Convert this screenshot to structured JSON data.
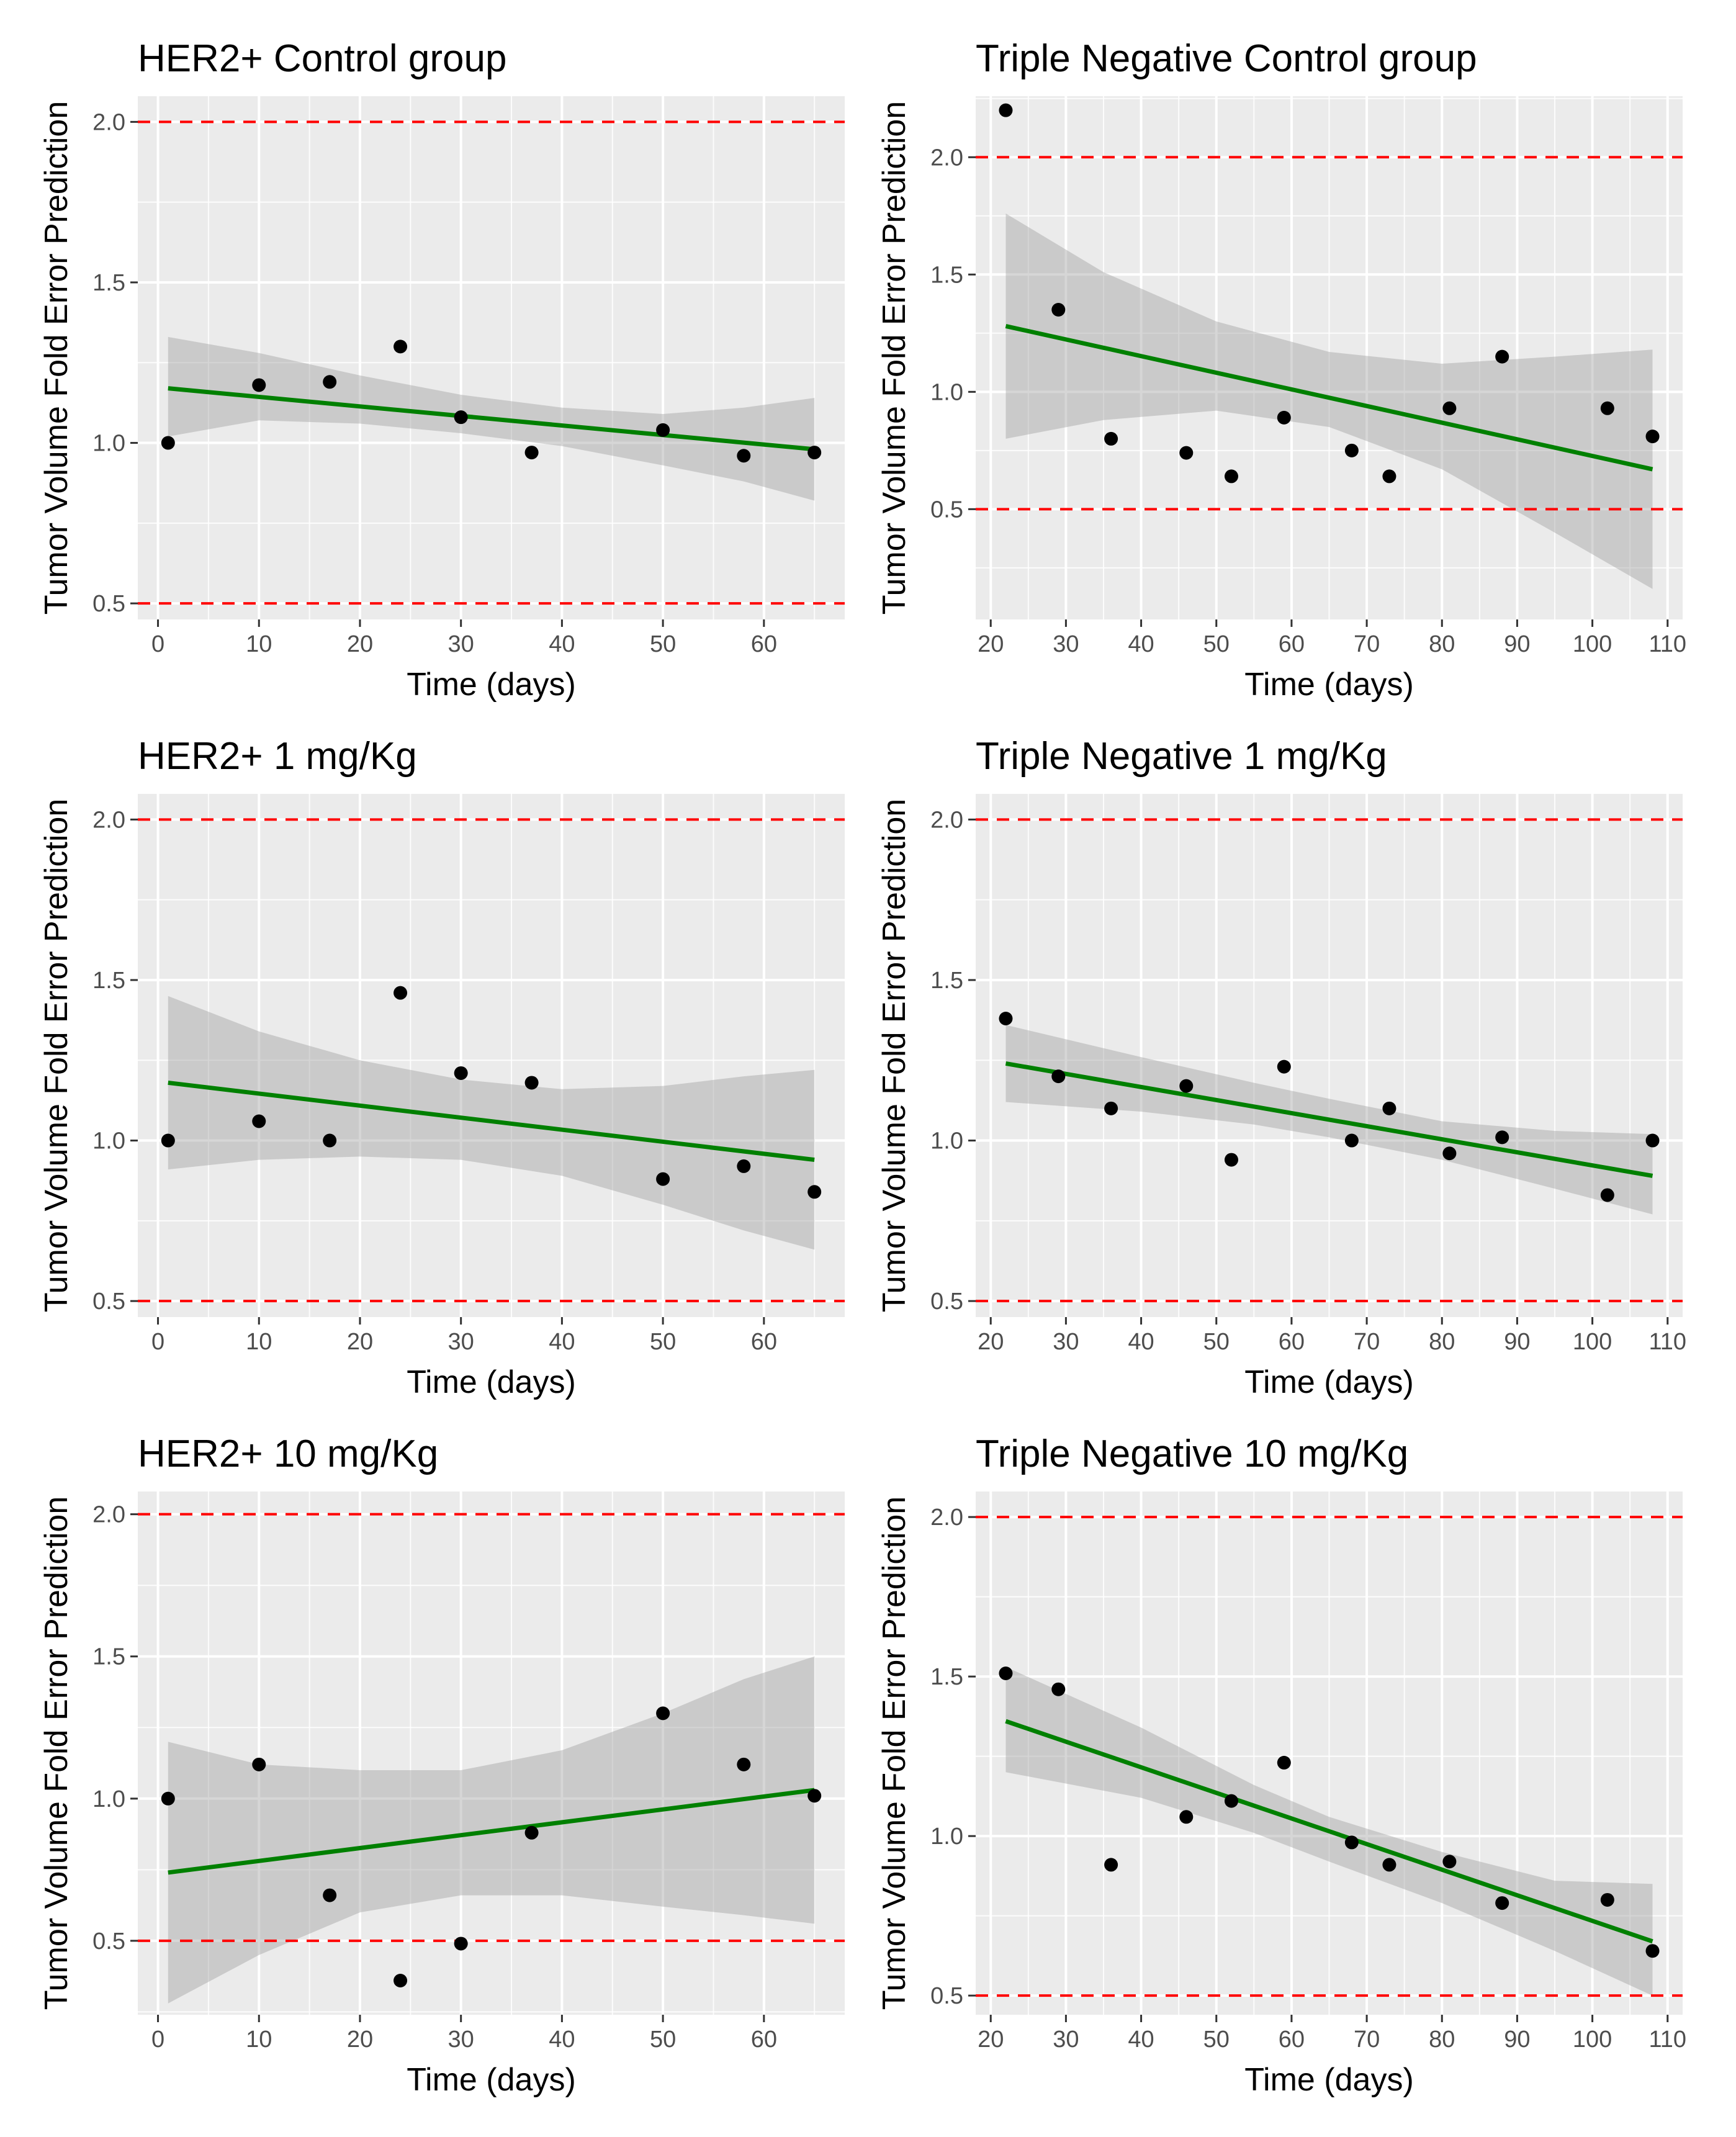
{
  "chart_data": [
    {
      "type": "scatter",
      "title": "HER2+ Control group",
      "xlabel": "Time (days)",
      "ylabel": "Tumor Volume Fold Error Prediction",
      "xlim": [
        -2,
        68
      ],
      "ylim": [
        0.45,
        2.08
      ],
      "xticks": [
        0,
        10,
        20,
        30,
        40,
        50,
        60
      ],
      "yticks": [
        0.5,
        1.0,
        1.5,
        2.0
      ],
      "ytick_labels": [
        "0.5",
        "1.0",
        "1.5",
        "2.0"
      ],
      "reference_lines": [
        0.5,
        2.0
      ],
      "grid": true,
      "points": {
        "x": [
          1,
          10,
          17,
          24,
          30,
          37,
          50,
          58,
          65
        ],
        "y": [
          1.0,
          1.18,
          1.19,
          1.3,
          1.08,
          0.97,
          1.04,
          0.96,
          0.97
        ]
      },
      "fit": {
        "x": [
          1,
          65
        ],
        "y": [
          1.17,
          0.98
        ]
      },
      "ci": {
        "x": [
          1,
          10,
          20,
          30,
          40,
          50,
          58,
          65
        ],
        "lower": [
          1.02,
          1.07,
          1.06,
          1.03,
          0.99,
          0.93,
          0.88,
          0.82
        ],
        "upper": [
          1.33,
          1.28,
          1.21,
          1.15,
          1.11,
          1.09,
          1.11,
          1.14
        ]
      }
    },
    {
      "type": "scatter",
      "title": "Triple Negative Control group",
      "xlabel": "Time (days)",
      "ylabel": "Tumor Volume Fold Error Prediction",
      "xlim": [
        18,
        112
      ],
      "ylim": [
        0.03,
        2.26
      ],
      "xticks": [
        20,
        30,
        40,
        50,
        60,
        70,
        80,
        90,
        100,
        110
      ],
      "yticks": [
        0.5,
        1.0,
        1.5,
        2.0
      ],
      "ytick_labels": [
        "0.5",
        "1.0",
        "1.5",
        "2.0"
      ],
      "reference_lines": [
        0.5,
        2.0
      ],
      "grid": true,
      "points": {
        "x": [
          22,
          29,
          36,
          46,
          52,
          59,
          68,
          73,
          81,
          88,
          102,
          108
        ],
        "y": [
          2.2,
          1.35,
          0.8,
          0.74,
          0.64,
          0.89,
          0.75,
          0.64,
          0.93,
          1.15,
          0.93,
          0.81
        ]
      },
      "fit": {
        "x": [
          22,
          108
        ],
        "y": [
          1.28,
          0.67
        ]
      },
      "ci": {
        "x": [
          22,
          35,
          50,
          65,
          80,
          95,
          108
        ],
        "lower": [
          0.8,
          0.88,
          0.92,
          0.85,
          0.67,
          0.4,
          0.16
        ],
        "upper": [
          1.76,
          1.51,
          1.3,
          1.17,
          1.12,
          1.15,
          1.18
        ]
      }
    },
    {
      "type": "scatter",
      "title": "HER2+ 1 mg/Kg",
      "xlabel": "Time (days)",
      "ylabel": "Tumor Volume Fold Error Prediction",
      "xlim": [
        -2,
        68
      ],
      "ylim": [
        0.45,
        2.08
      ],
      "xticks": [
        0,
        10,
        20,
        30,
        40,
        50,
        60
      ],
      "yticks": [
        0.5,
        1.0,
        1.5,
        2.0
      ],
      "ytick_labels": [
        "0.5",
        "1.0",
        "1.5",
        "2.0"
      ],
      "reference_lines": [
        0.5,
        2.0
      ],
      "grid": true,
      "points": {
        "x": [
          1,
          10,
          17,
          24,
          30,
          37,
          50,
          58,
          65
        ],
        "y": [
          1.0,
          1.06,
          1.0,
          1.46,
          1.21,
          1.18,
          0.88,
          0.92,
          0.84
        ]
      },
      "fit": {
        "x": [
          1,
          65
        ],
        "y": [
          1.18,
          0.94
        ]
      },
      "ci": {
        "x": [
          1,
          10,
          20,
          30,
          40,
          50,
          58,
          65
        ],
        "lower": [
          0.91,
          0.94,
          0.95,
          0.94,
          0.89,
          0.8,
          0.72,
          0.66
        ],
        "upper": [
          1.45,
          1.34,
          1.25,
          1.19,
          1.16,
          1.17,
          1.2,
          1.22
        ]
      }
    },
    {
      "type": "scatter",
      "title": "Triple Negative 1 mg/Kg",
      "xlabel": "Time (days)",
      "ylabel": "Tumor Volume Fold Error Prediction",
      "xlim": [
        18,
        112
      ],
      "ylim": [
        0.45,
        2.08
      ],
      "xticks": [
        20,
        30,
        40,
        50,
        60,
        70,
        80,
        90,
        100,
        110
      ],
      "yticks": [
        0.5,
        1.0,
        1.5,
        2.0
      ],
      "ytick_labels": [
        "0.5",
        "1.0",
        "1.5",
        "2.0"
      ],
      "reference_lines": [
        0.5,
        2.0
      ],
      "grid": true,
      "points": {
        "x": [
          22,
          29,
          36,
          46,
          52,
          59,
          68,
          73,
          81,
          88,
          102,
          108
        ],
        "y": [
          1.38,
          1.2,
          1.1,
          1.17,
          0.94,
          1.23,
          1.0,
          1.1,
          0.96,
          1.01,
          0.83,
          1.0
        ]
      },
      "fit": {
        "x": [
          22,
          108
        ],
        "y": [
          1.24,
          0.89
        ]
      },
      "ci": {
        "x": [
          22,
          40,
          55,
          65,
          80,
          95,
          108
        ],
        "lower": [
          1.12,
          1.09,
          1.05,
          1.01,
          0.94,
          0.85,
          0.77
        ],
        "upper": [
          1.36,
          1.26,
          1.18,
          1.13,
          1.06,
          1.03,
          1.02
        ]
      }
    },
    {
      "type": "scatter",
      "title": "HER2+ 10 mg/Kg",
      "xlabel": "Time (days)",
      "ylabel": "Tumor Volume Fold Error Prediction",
      "xlim": [
        -2,
        68
      ],
      "ylim": [
        0.24,
        2.08
      ],
      "xticks": [
        0,
        10,
        20,
        30,
        40,
        50,
        60
      ],
      "yticks": [
        0.5,
        1.0,
        1.5,
        2.0
      ],
      "ytick_labels": [
        "0.5",
        "1.0",
        "1.5",
        "2.0"
      ],
      "reference_lines": [
        0.5,
        2.0
      ],
      "grid": true,
      "points": {
        "x": [
          1,
          10,
          17,
          24,
          30,
          37,
          50,
          58,
          65
        ],
        "y": [
          1.0,
          1.12,
          0.66,
          0.36,
          0.49,
          0.88,
          1.3,
          1.12,
          1.01
        ]
      },
      "fit": {
        "x": [
          1,
          65
        ],
        "y": [
          0.74,
          1.03
        ]
      },
      "ci": {
        "x": [
          1,
          10,
          20,
          30,
          40,
          50,
          58,
          65
        ],
        "lower": [
          0.28,
          0.45,
          0.6,
          0.66,
          0.66,
          0.62,
          0.59,
          0.56
        ],
        "upper": [
          1.2,
          1.12,
          1.1,
          1.1,
          1.17,
          1.3,
          1.42,
          1.5
        ]
      }
    },
    {
      "type": "scatter",
      "title": "Triple Negative 10 mg/Kg",
      "xlabel": "Time (days)",
      "ylabel": "Tumor Volume Fold Error Prediction",
      "xlim": [
        18,
        112
      ],
      "ylim": [
        0.44,
        2.08
      ],
      "xticks": [
        20,
        30,
        40,
        50,
        60,
        70,
        80,
        90,
        100,
        110
      ],
      "yticks": [
        0.5,
        1.0,
        1.5,
        2.0
      ],
      "ytick_labels": [
        "0.5",
        "1.0",
        "1.5",
        "2.0"
      ],
      "reference_lines": [
        0.5,
        2.0
      ],
      "grid": true,
      "points": {
        "x": [
          22,
          29,
          36,
          46,
          52,
          59,
          68,
          73,
          81,
          88,
          102,
          108
        ],
        "y": [
          1.51,
          1.46,
          0.91,
          1.06,
          1.11,
          1.23,
          0.98,
          0.91,
          0.92,
          0.79,
          0.8,
          0.64
        ]
      },
      "fit": {
        "x": [
          22,
          108
        ],
        "y": [
          1.36,
          0.67
        ]
      },
      "ci": {
        "x": [
          22,
          40,
          55,
          65,
          80,
          95,
          108
        ],
        "lower": [
          1.2,
          1.12,
          1.01,
          0.92,
          0.79,
          0.64,
          0.5
        ],
        "upper": [
          1.53,
          1.34,
          1.16,
          1.06,
          0.95,
          0.86,
          0.85
        ]
      }
    }
  ]
}
